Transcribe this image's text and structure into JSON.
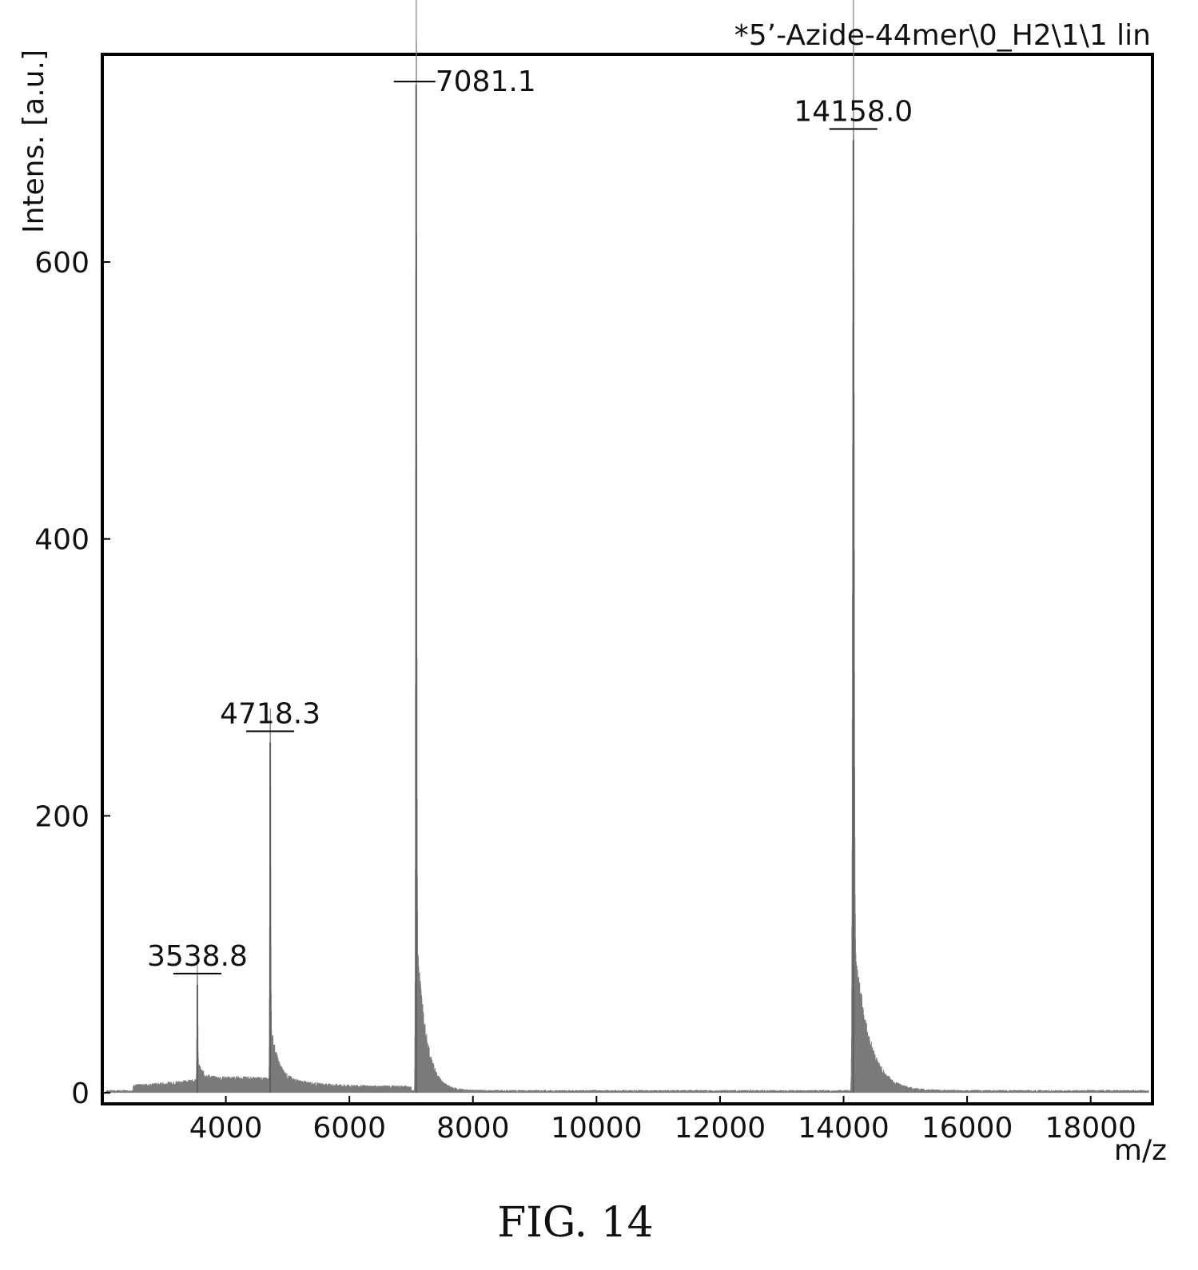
{
  "chart_data": {
    "type": "line",
    "title": "*5’-Azide-44mer\\0_H2\\1\\1 lin",
    "xlabel": "m/z",
    "ylabel": "Intens. [a.u.]",
    "xlim": [
      2000,
      19000
    ],
    "ylim": [
      -8,
      750
    ],
    "x_ticks": [
      4000,
      6000,
      8000,
      10000,
      12000,
      14000,
      16000,
      18000
    ],
    "y_ticks": [
      0,
      200,
      400,
      600
    ],
    "grid": false,
    "legend": "none",
    "line_color": "#7a7a7a",
    "peaks": [
      {
        "mz": 3538.8,
        "intensity": 78,
        "label": "3538.8"
      },
      {
        "mz": 4718.3,
        "intensity": 253,
        "label": "4718.3"
      },
      {
        "mz": 7081.1,
        "intensity": 728,
        "label": "7081.1"
      },
      {
        "mz": 14158.0,
        "intensity": 688,
        "label": "14158.0"
      }
    ]
  },
  "figure": {
    "caption": "FIG. 14"
  }
}
